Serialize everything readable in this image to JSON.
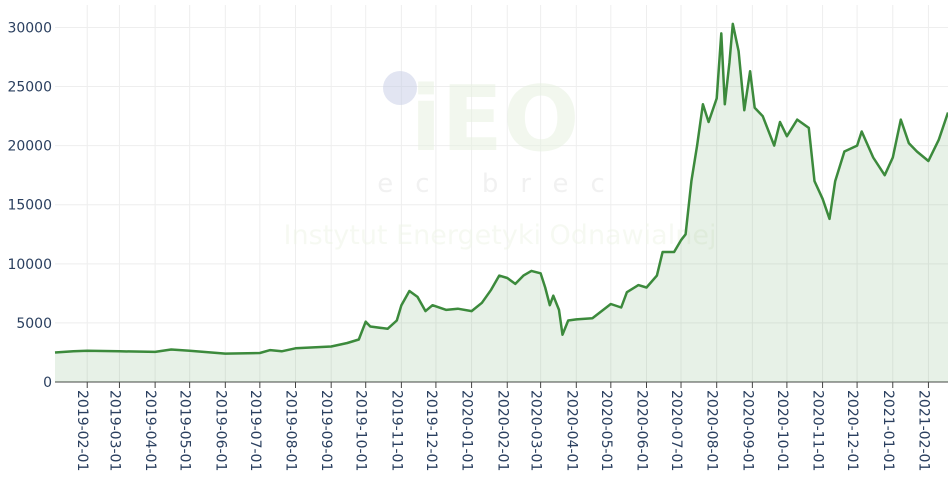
{
  "chart_data": {
    "type": "area",
    "watermark": {
      "logo": "iEO",
      "subtitle": "ec brec",
      "text": "Instytut Energetyki Odnawialnej"
    },
    "x": [
      "2019-01-04",
      "2019-01-20",
      "2019-02-01",
      "2019-03-01",
      "2019-04-01",
      "2019-04-15",
      "2019-05-01",
      "2019-06-01",
      "2019-07-01",
      "2019-07-10",
      "2019-07-20",
      "2019-08-01",
      "2019-09-01",
      "2019-09-15",
      "2019-09-25",
      "2019-10-01",
      "2019-10-05",
      "2019-10-20",
      "2019-10-28",
      "2019-11-01",
      "2019-11-08",
      "2019-11-15",
      "2019-11-22",
      "2019-11-28",
      "2019-12-10",
      "2019-12-20",
      "2020-01-01",
      "2020-01-10",
      "2020-01-18",
      "2020-01-25",
      "2020-02-01",
      "2020-02-08",
      "2020-02-15",
      "2020-02-22",
      "2020-03-01",
      "2020-03-05",
      "2020-03-09",
      "2020-03-12",
      "2020-03-17",
      "2020-03-20",
      "2020-03-25",
      "2020-04-01",
      "2020-04-15",
      "2020-05-01",
      "2020-05-10",
      "2020-05-15",
      "2020-05-25",
      "2020-06-01",
      "2020-06-10",
      "2020-06-15",
      "2020-06-25",
      "2020-07-01",
      "2020-07-05",
      "2020-07-10",
      "2020-07-15",
      "2020-07-20",
      "2020-07-25",
      "2020-08-01",
      "2020-08-05",
      "2020-08-08",
      "2020-08-12",
      "2020-08-15",
      "2020-08-20",
      "2020-08-25",
      "2020-08-30",
      "2020-09-03",
      "2020-09-10",
      "2020-09-20",
      "2020-09-25",
      "2020-10-01",
      "2020-10-10",
      "2020-10-20",
      "2020-10-25",
      "2020-11-01",
      "2020-11-07",
      "2020-11-12",
      "2020-11-20",
      "2020-12-01",
      "2020-12-05",
      "2020-12-15",
      "2020-12-25",
      "2021-01-01",
      "2021-01-08",
      "2021-01-15",
      "2021-01-22",
      "2021-02-01",
      "2021-02-10",
      "2021-02-18"
    ],
    "series": [
      {
        "color": "#3c8a3c",
        "fill": "rgba(60,138,60,0.12)",
        "values": [
          2500,
          2600,
          2650,
          2600,
          2550,
          2750,
          2650,
          2400,
          2450,
          2700,
          2600,
          2850,
          3000,
          3300,
          3600,
          5100,
          4700,
          4500,
          5200,
          6500,
          7700,
          7200,
          6000,
          6500,
          6100,
          6200,
          6000,
          6700,
          7800,
          9000,
          8800,
          8300,
          9000,
          9400,
          9200,
          8000,
          6500,
          7300,
          6100,
          4000,
          5200,
          5300,
          5400,
          6600,
          6300,
          7600,
          8200,
          8000,
          9000,
          11000,
          11000,
          12000,
          12500,
          17000,
          20000,
          23500,
          22000,
          24000,
          29500,
          23500,
          27000,
          30300,
          28000,
          23000,
          26300,
          23200,
          22500,
          20000,
          22000,
          20800,
          22200,
          21500,
          17000,
          15500,
          13800,
          17000,
          19500,
          20000,
          21200,
          19000,
          17500,
          19000,
          22200,
          20200,
          19500,
          18700,
          20500,
          22800
        ]
      }
    ],
    "xlim": [
      "2019-01-04",
      "2021-02-18"
    ],
    "xticks": [
      "2019-02-01",
      "2019-03-01",
      "2019-04-01",
      "2019-05-01",
      "2019-06-01",
      "2019-07-01",
      "2019-08-01",
      "2019-09-01",
      "2019-10-01",
      "2019-11-01",
      "2019-12-01",
      "2020-01-01",
      "2020-02-01",
      "2020-03-01",
      "2020-04-01",
      "2020-05-01",
      "2020-06-01",
      "2020-07-01",
      "2020-08-01",
      "2020-09-01",
      "2020-10-01",
      "2020-11-01",
      "2020-12-01",
      "2021-01-01",
      "2021-02-01"
    ],
    "ylim": [
      0,
      31900
    ],
    "yticks": [
      0,
      5000,
      10000,
      15000,
      20000,
      25000,
      30000
    ],
    "grid": true
  }
}
